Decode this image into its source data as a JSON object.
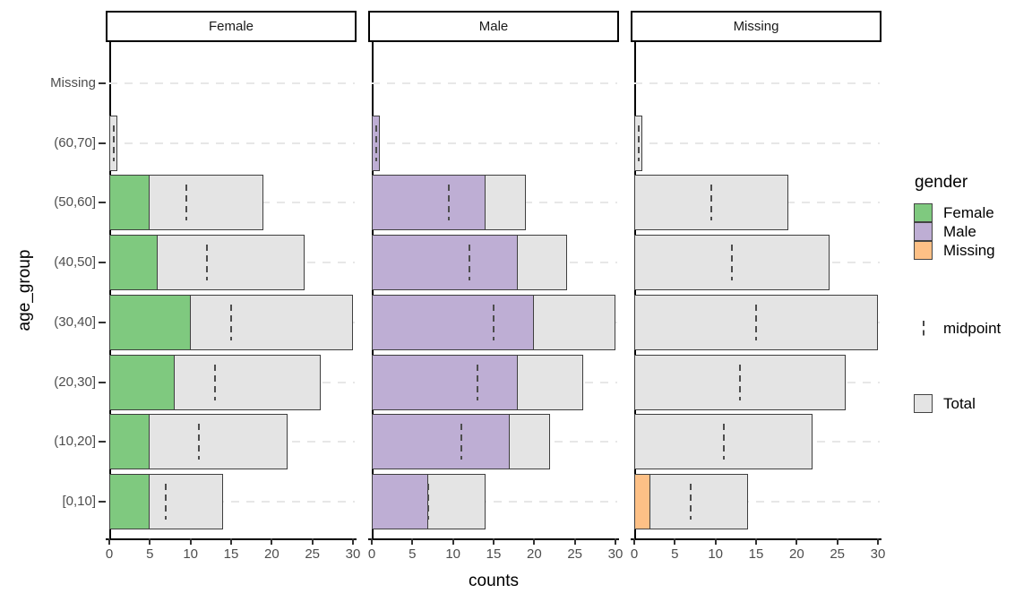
{
  "chart_data": {
    "type": "bar",
    "orientation": "horizontal",
    "title": "",
    "xlabel": "counts",
    "ylabel": "age_group",
    "facets": [
      "Female",
      "Male",
      "Missing"
    ],
    "categories": [
      "Missing",
      "(60,70]",
      "(50,60]",
      "(40,50]",
      "(30,40]",
      "(20,30]",
      "(10,20]",
      "[0,10]"
    ],
    "totals": [
      0,
      1,
      19,
      24,
      30,
      26,
      22,
      14
    ],
    "series": [
      {
        "name": "Female",
        "color": "#7fc97f",
        "values": [
          0,
          0,
          5,
          6,
          10,
          8,
          5,
          5
        ]
      },
      {
        "name": "Male",
        "color": "#beaed4",
        "values": [
          0,
          1,
          14,
          18,
          20,
          18,
          17,
          7
        ]
      },
      {
        "name": "Missing",
        "color": "#fdc086",
        "values": [
          0,
          0,
          0,
          0,
          0,
          0,
          0,
          2
        ]
      }
    ],
    "midpoints": [
      null,
      0.5,
      9.5,
      12,
      15,
      13,
      11,
      7
    ],
    "x_ticks": [
      0,
      5,
      10,
      15,
      20,
      25,
      30
    ],
    "xlim": [
      0,
      30
    ],
    "grid": "horizontal-dashed",
    "legend": {
      "position": "right",
      "title": "gender",
      "items": [
        "Female",
        "Male",
        "Missing"
      ],
      "midpoint_label": "midpoint",
      "total_label": "Total"
    },
    "colors": {
      "total_fill": "#e4e4e4",
      "bar_border": "#3f3f3f",
      "gridline": "#e7e7e7",
      "axis_line": "#000000",
      "tick_label": "#4d4d4d"
    }
  }
}
